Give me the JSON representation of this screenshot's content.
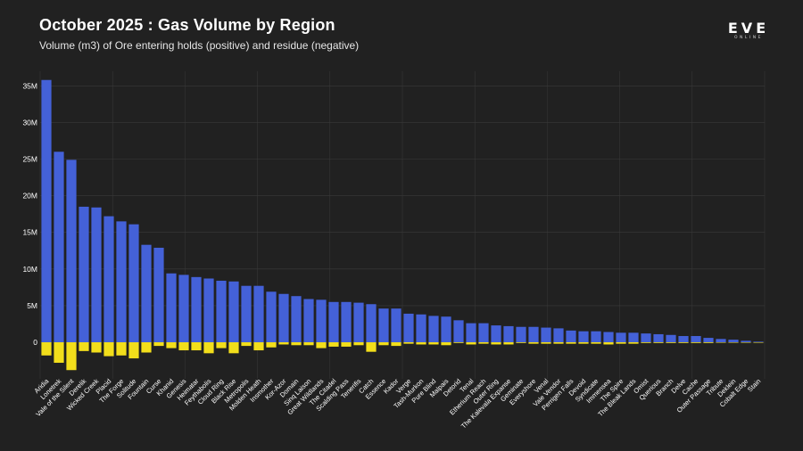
{
  "header": {
    "title": "October 2025 : Gas Volume by Region",
    "subtitle": "Volume (m3) of Ore entering holds (positive) and residue (negative)"
  },
  "logo": {
    "word": "EVE",
    "sub": "ONLINE"
  },
  "colors": {
    "background": "#212121",
    "positive": "#4461d8",
    "negative": "#f2de1b",
    "grid": "#3a3a3a"
  },
  "chart_data": {
    "type": "bar",
    "stacked": true,
    "title": "October 2025 : Gas Volume by Region",
    "subtitle": "Volume (m3) of Ore entering holds (positive) and residue (negative)",
    "xlabel": "",
    "ylabel": "",
    "ylim": [
      -5000000,
      37000000
    ],
    "yticks": [
      0,
      5000000,
      10000000,
      15000000,
      20000000,
      25000000,
      30000000,
      35000000
    ],
    "ytick_labels": [
      "0",
      "5M",
      "10M",
      "15M",
      "20M",
      "25M",
      "30M",
      "35M"
    ],
    "grid": true,
    "categories": [
      "Aridia",
      "Lonetrek",
      "Vale of the Silent",
      "Derelik",
      "Wicked Creek",
      "Placid",
      "The Forge",
      "Solitude",
      "Fountain",
      "Curse",
      "Khanid",
      "Genesis",
      "Heimatar",
      "Feythabolis",
      "Cloud Ring",
      "Black Rise",
      "Metropolis",
      "Molden Heath",
      "Insmother",
      "Kor-Azor",
      "Domain",
      "Sinq Laison",
      "Great Wildlands",
      "The Citadel",
      "Scalding Pass",
      "Tenerifis",
      "Catch",
      "Essence",
      "Kador",
      "Verge",
      "Tash-Murkon",
      "Pure Blind",
      "Malpais",
      "Detorid",
      "Tenal",
      "Etherium Reach",
      "Outer Ring",
      "The Kalevala Expanse",
      "Geminate",
      "Everyshore",
      "Venal",
      "Vale Vendor",
      "Perrigen Falls",
      "Devoid",
      "Syndicate",
      "Immensea",
      "The Spire",
      "The Bleak Lands",
      "Omist",
      "Querious",
      "Branch",
      "Delve",
      "Cache",
      "Outer Passage",
      "Tribute",
      "Deklein",
      "Cobalt Edge",
      "Stain"
    ],
    "series": [
      {
        "values": [
          35800000,
          26000000,
          24900000,
          18500000,
          18400000,
          17200000,
          16500000,
          16100000,
          13300000,
          12900000,
          9400000,
          9200000,
          8900000,
          8700000,
          8400000,
          8300000,
          7700000,
          7700000,
          6900000,
          6600000,
          6300000,
          5900000,
          5800000,
          5500000,
          5500000,
          5400000,
          5200000,
          4600000,
          4600000,
          3900000,
          3800000,
          3600000,
          3500000,
          3000000,
          2600000,
          2600000,
          2300000,
          2200000,
          2100000,
          2100000,
          2000000,
          1900000,
          1600000,
          1500000,
          1500000,
          1400000,
          1300000,
          1300000,
          1200000,
          1100000,
          1000000,
          850000,
          850000,
          600000,
          450000,
          350000,
          200000,
          80000
        ]
      },
      {
        "values": [
          -1800000,
          -2800000,
          -3800000,
          -1200000,
          -1400000,
          -1900000,
          -1800000,
          -2200000,
          -1400000,
          -500000,
          -800000,
          -1100000,
          -1100000,
          -1500000,
          -800000,
          -1500000,
          -500000,
          -1100000,
          -700000,
          -300000,
          -400000,
          -400000,
          -800000,
          -600000,
          -600000,
          -400000,
          -1300000,
          -400000,
          -500000,
          -200000,
          -300000,
          -300000,
          -400000,
          -100000,
          -300000,
          -200000,
          -300000,
          -300000,
          -100000,
          -200000,
          -200000,
          -200000,
          -200000,
          -200000,
          -200000,
          -300000,
          -200000,
          -200000,
          -100000,
          -100000,
          -100000,
          -100000,
          -100000,
          -100000,
          -50000,
          -50000,
          -30000,
          -20000
        ]
      }
    ]
  }
}
